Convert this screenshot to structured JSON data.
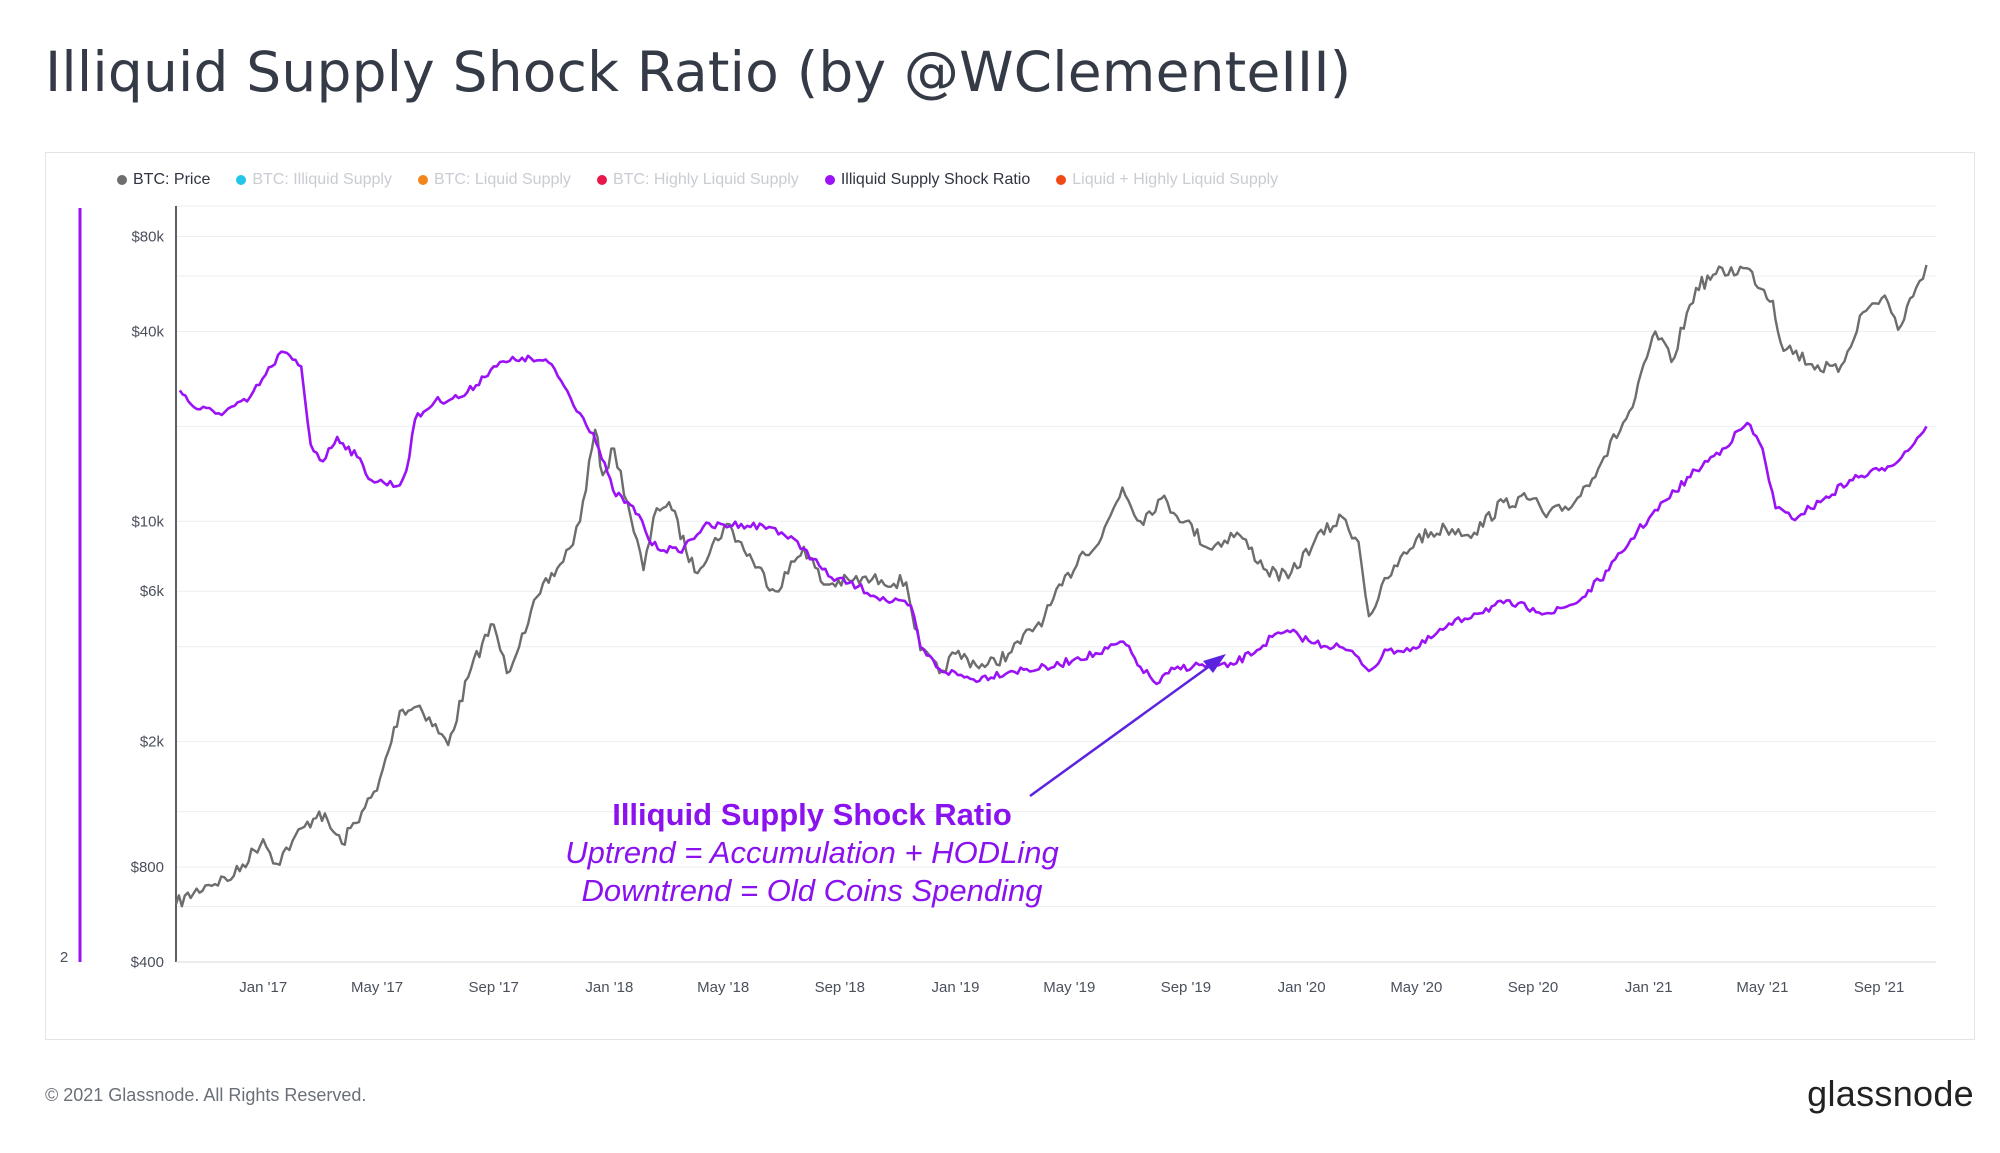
{
  "title": "Illiquid Supply Shock Ratio (by @WClementeIII)",
  "legend": [
    {
      "label": "BTC: Price",
      "color": "#6d6d6d",
      "active": true
    },
    {
      "label": "BTC: Illiquid Supply",
      "color": "#24c6e8",
      "active": false
    },
    {
      "label": "BTC: Liquid Supply",
      "color": "#f0861c",
      "active": false
    },
    {
      "label": "BTC: Highly Liquid Supply",
      "color": "#e8194a",
      "active": false
    },
    {
      "label": "Illiquid Supply Shock Ratio",
      "color": "#9a12f5",
      "active": true
    },
    {
      "label": "Liquid + Highly Liquid Supply",
      "color": "#f04a14",
      "active": false
    }
  ],
  "annotation": {
    "title": "Illiquid Supply Shock Ratio",
    "line1": "Uptrend = Accumulation + HODLing",
    "line2": "Downtrend = Old Coins Spending"
  },
  "footer": {
    "copyright": "© 2021 Glassnode. All Rights Reserved.",
    "logo": "glassnode"
  },
  "chart_data": {
    "type": "line",
    "y_scale": "log",
    "xlim": [
      "2016-10-01",
      "2021-10-31"
    ],
    "ylim": [
      400,
      100000
    ],
    "grid": true,
    "x_ticks": [
      "Jan '17",
      "May '17",
      "Sep '17",
      "Jan '18",
      "May '18",
      "Sep '18",
      "Jan '19",
      "May '19",
      "Sep '19",
      "Jan '20",
      "May '20",
      "Sep '20",
      "Jan '21",
      "May '21",
      "Sep '21"
    ],
    "x_tick_dates": [
      "2017-01-01",
      "2017-05-01",
      "2017-09-01",
      "2018-01-01",
      "2018-05-01",
      "2018-09-01",
      "2019-01-01",
      "2019-05-01",
      "2019-09-01",
      "2020-01-01",
      "2020-05-01",
      "2020-09-01",
      "2021-01-01",
      "2021-05-01",
      "2021-09-01"
    ],
    "y_ticks": [
      {
        "value": 80000,
        "label": "$80k"
      },
      {
        "value": 40000,
        "label": "$40k"
      },
      {
        "value": 10000,
        "label": "$10k"
      },
      {
        "value": 6000,
        "label": "$6k"
      },
      {
        "value": 2000,
        "label": "$2k"
      },
      {
        "value": 800,
        "label": "$800"
      },
      {
        "value": 400,
        "label": "$400"
      }
    ],
    "left_axis": {
      "tick_label": "2",
      "color": "#9a12f5"
    },
    "series": [
      {
        "name": "BTC: Price",
        "color": "#6d6d6d",
        "points": [
          [
            "2016-10-01",
            610
          ],
          [
            "2016-11-01",
            700
          ],
          [
            "2016-12-01",
            750
          ],
          [
            "2017-01-01",
            980
          ],
          [
            "2017-01-15",
            820
          ],
          [
            "2017-02-01",
            970
          ],
          [
            "2017-03-01",
            1200
          ],
          [
            "2017-03-25",
            950
          ],
          [
            "2017-04-15",
            1200
          ],
          [
            "2017-05-01",
            1400
          ],
          [
            "2017-05-25",
            2500
          ],
          [
            "2017-06-15",
            2600
          ],
          [
            "2017-07-15",
            1950
          ],
          [
            "2017-08-05",
            3200
          ],
          [
            "2017-08-20",
            4100
          ],
          [
            "2017-09-01",
            4700
          ],
          [
            "2017-09-15",
            3300
          ],
          [
            "2017-10-01",
            4400
          ],
          [
            "2017-10-20",
            5900
          ],
          [
            "2017-11-10",
            7300
          ],
          [
            "2017-11-20",
            8200
          ],
          [
            "2017-12-01",
            10000
          ],
          [
            "2017-12-17",
            19500
          ],
          [
            "2017-12-25",
            14000
          ],
          [
            "2018-01-06",
            17000
          ],
          [
            "2018-01-20",
            11500
          ],
          [
            "2018-02-06",
            7000
          ],
          [
            "2018-02-20",
            11000
          ],
          [
            "2018-03-05",
            11500
          ],
          [
            "2018-04-01",
            6900
          ],
          [
            "2018-05-05",
            9800
          ],
          [
            "2018-06-01",
            7500
          ],
          [
            "2018-06-25",
            6000
          ],
          [
            "2018-07-25",
            8300
          ],
          [
            "2018-08-15",
            6300
          ],
          [
            "2018-09-15",
            6500
          ],
          [
            "2018-10-15",
            6500
          ],
          [
            "2018-11-10",
            6400
          ],
          [
            "2018-11-25",
            3900
          ],
          [
            "2018-12-15",
            3300
          ],
          [
            "2019-01-01",
            3800
          ],
          [
            "2019-02-01",
            3450
          ],
          [
            "2019-03-01",
            3850
          ],
          [
            "2019-04-05",
            5000
          ],
          [
            "2019-05-15",
            8000
          ],
          [
            "2019-06-01",
            8500
          ],
          [
            "2019-06-26",
            12800
          ],
          [
            "2019-07-15",
            10000
          ],
          [
            "2019-08-06",
            11800
          ],
          [
            "2019-09-01",
            10000
          ],
          [
            "2019-09-25",
            8200
          ],
          [
            "2019-10-25",
            9200
          ],
          [
            "2019-11-25",
            7000
          ],
          [
            "2019-12-18",
            6600
          ],
          [
            "2020-01-15",
            8700
          ],
          [
            "2020-02-13",
            10300
          ],
          [
            "2020-03-01",
            8600
          ],
          [
            "2020-03-12",
            5000
          ],
          [
            "2020-04-01",
            6600
          ],
          [
            "2020-05-01",
            8800
          ],
          [
            "2020-06-01",
            9500
          ],
          [
            "2020-07-01",
            9200
          ],
          [
            "2020-08-01",
            11500
          ],
          [
            "2020-09-01",
            11800
          ],
          [
            "2020-09-15",
            10300
          ],
          [
            "2020-10-15",
            11500
          ],
          [
            "2020-11-15",
            16000
          ],
          [
            "2020-12-15",
            23000
          ],
          [
            "2021-01-08",
            40000
          ],
          [
            "2021-01-25",
            32000
          ],
          [
            "2021-02-20",
            55000
          ],
          [
            "2021-03-13",
            61000
          ],
          [
            "2021-04-14",
            63500
          ],
          [
            "2021-05-12",
            50000
          ],
          [
            "2021-05-20",
            37000
          ],
          [
            "2021-06-22",
            31500
          ],
          [
            "2021-07-20",
            29800
          ],
          [
            "2021-08-15",
            46000
          ],
          [
            "2021-09-07",
            52000
          ],
          [
            "2021-09-21",
            40500
          ],
          [
            "2021-10-10",
            55000
          ],
          [
            "2021-10-21",
            65000
          ]
        ]
      },
      {
        "name": "Illiquid Supply Shock Ratio",
        "color": "#9a12f5",
        "points": [
          [
            "2016-10-05",
            26000
          ],
          [
            "2016-10-20",
            23000
          ],
          [
            "2016-11-15",
            22000
          ],
          [
            "2016-12-15",
            24000
          ],
          [
            "2017-01-10",
            31000
          ],
          [
            "2017-01-20",
            34500
          ],
          [
            "2017-02-10",
            31000
          ],
          [
            "2017-02-20",
            17500
          ],
          [
            "2017-03-05",
            15500
          ],
          [
            "2017-03-20",
            18500
          ],
          [
            "2017-04-10",
            16000
          ],
          [
            "2017-04-25",
            13500
          ],
          [
            "2017-05-25",
            13000
          ],
          [
            "2017-06-01",
            14500
          ],
          [
            "2017-06-10",
            21000
          ],
          [
            "2017-07-01",
            24000
          ],
          [
            "2017-08-01",
            25000
          ],
          [
            "2017-09-01",
            31000
          ],
          [
            "2017-10-01",
            33000
          ],
          [
            "2017-11-01",
            31500
          ],
          [
            "2017-12-01",
            22000
          ],
          [
            "2017-12-15",
            19000
          ],
          [
            "2018-01-05",
            12500
          ],
          [
            "2018-02-01",
            10500
          ],
          [
            "2018-02-15",
            8400
          ],
          [
            "2018-03-15",
            8000
          ],
          [
            "2018-04-10",
            9600
          ],
          [
            "2018-05-20",
            9800
          ],
          [
            "2018-06-25",
            9500
          ],
          [
            "2018-07-25",
            8200
          ],
          [
            "2018-08-20",
            6700
          ],
          [
            "2018-09-20",
            6200
          ],
          [
            "2018-10-20",
            5600
          ],
          [
            "2018-11-15",
            5400
          ],
          [
            "2018-11-25",
            4000
          ],
          [
            "2018-12-15",
            3400
          ],
          [
            "2019-01-20",
            3150
          ],
          [
            "2019-03-01",
            3350
          ],
          [
            "2019-04-15",
            3450
          ],
          [
            "2019-05-10",
            3700
          ],
          [
            "2019-06-01",
            3800
          ],
          [
            "2019-06-27",
            4150
          ],
          [
            "2019-07-15",
            3450
          ],
          [
            "2019-08-01",
            3050
          ],
          [
            "2019-08-20",
            3400
          ],
          [
            "2019-09-15",
            3500
          ],
          [
            "2019-10-15",
            3450
          ],
          [
            "2019-11-15",
            3900
          ],
          [
            "2019-12-01",
            4300
          ],
          [
            "2019-12-20",
            4450
          ],
          [
            "2020-01-15",
            4100
          ],
          [
            "2020-02-10",
            4000
          ],
          [
            "2020-03-01",
            3700
          ],
          [
            "2020-03-12",
            3350
          ],
          [
            "2020-04-01",
            3900
          ],
          [
            "2020-05-01",
            3950
          ],
          [
            "2020-06-01",
            4600
          ],
          [
            "2020-07-01",
            5100
          ],
          [
            "2020-08-01",
            5500
          ],
          [
            "2020-09-01",
            5300
          ],
          [
            "2020-09-20",
            5100
          ],
          [
            "2020-10-20",
            5600
          ],
          [
            "2020-11-20",
            7000
          ],
          [
            "2020-12-20",
            9300
          ],
          [
            "2021-01-20",
            11700
          ],
          [
            "2021-02-20",
            14500
          ],
          [
            "2021-03-20",
            17000
          ],
          [
            "2021-04-15",
            20500
          ],
          [
            "2021-05-01",
            17000
          ],
          [
            "2021-05-15",
            11000
          ],
          [
            "2021-06-01",
            10200
          ],
          [
            "2021-07-01",
            11500
          ],
          [
            "2021-08-01",
            13500
          ],
          [
            "2021-09-01",
            14500
          ],
          [
            "2021-09-25",
            16000
          ],
          [
            "2021-10-21",
            20000
          ]
        ]
      }
    ]
  }
}
